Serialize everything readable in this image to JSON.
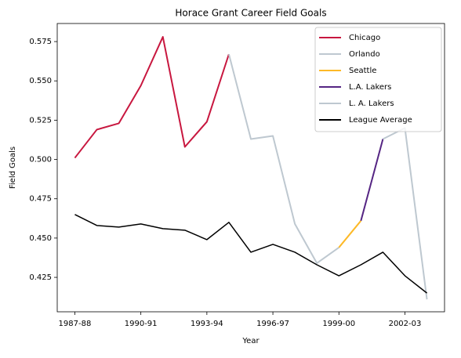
{
  "chart_data": {
    "type": "line",
    "title": "Horace Grant Career Field Goals",
    "x_label": "Year",
    "y_label": "Field Goals",
    "categories": [
      "1987-88",
      null,
      null,
      "1990-91",
      null,
      null,
      "1993-94",
      null,
      null,
      "1996-97",
      null,
      null,
      "1999-00",
      null,
      null,
      "2002-03",
      null
    ],
    "series": [
      {
        "name": "Chicago",
        "color": "#c8173f",
        "values": [
          0.501,
          0.519,
          0.523,
          0.547,
          0.578,
          0.508,
          0.524,
          0.567,
          null,
          null,
          null,
          null,
          null,
          null,
          null,
          null,
          null
        ]
      },
      {
        "name": "Orlando",
        "color": "#bec8d0",
        "values": [
          null,
          null,
          null,
          null,
          null,
          null,
          null,
          0.567,
          0.513,
          0.515,
          0.459,
          0.434,
          0.444,
          null,
          null,
          null,
          null
        ]
      },
      {
        "name": "Seattle",
        "color": "#fdb927",
        "values": [
          null,
          null,
          null,
          null,
          null,
          null,
          null,
          null,
          null,
          null,
          null,
          null,
          0.444,
          0.461,
          null,
          null,
          null
        ]
      },
      {
        "name": "L.A. Lakers",
        "color": "#552583",
        "values": [
          null,
          null,
          null,
          null,
          null,
          null,
          null,
          null,
          null,
          null,
          null,
          null,
          null,
          0.461,
          0.513,
          null,
          null
        ]
      },
      {
        "name": "L. A. Lakers",
        "color": "#bec8d0",
        "values": [
          null,
          null,
          null,
          null,
          null,
          null,
          null,
          null,
          null,
          null,
          null,
          null,
          null,
          null,
          0.513,
          0.52,
          0.411
        ]
      },
      {
        "name": "League Average",
        "color": "#000000",
        "values": [
          0.465,
          0.458,
          0.457,
          0.459,
          0.456,
          0.455,
          0.449,
          0.46,
          0.441,
          0.446,
          0.441,
          0.433,
          0.426,
          0.433,
          0.441,
          0.426,
          0.415
        ]
      }
    ],
    "ylim": [
      0.4031,
      0.5865
    ],
    "yticks": [
      0.425,
      {
        "value": 0.45,
        "label": "0.450"
      },
      0.475,
      {
        "value": 0.5,
        "label": "0.500"
      },
      0.525,
      {
        "value": 0.55,
        "label": "0.550"
      },
      0.575
    ],
    "legend": "upper right",
    "grid": false
  }
}
